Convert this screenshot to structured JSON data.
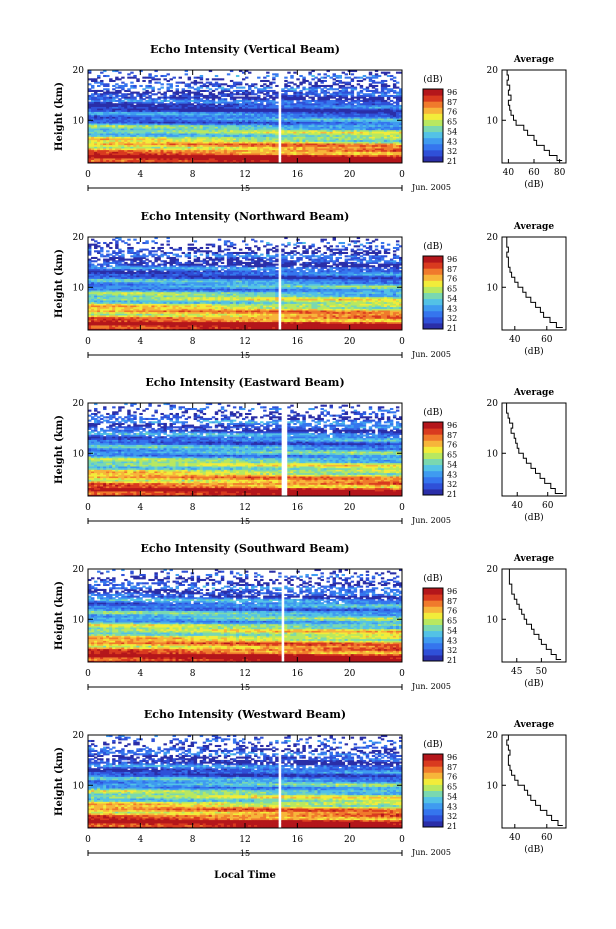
{
  "figure": {
    "xlabel": "Local Time",
    "date_label": "Jun. 2005",
    "day_label": "15",
    "cbar_unit": "(dB)",
    "colors": {
      "scale": [
        "#2a2ea8",
        "#2f50d8",
        "#3575ee",
        "#3f9bf0",
        "#53c2e6",
        "#7ad8b0",
        "#b8e860",
        "#f2ec3a",
        "#f7b53a",
        "#f07a2c",
        "#d93a1f",
        "#b4161b"
      ],
      "gap": "#ffffff"
    }
  },
  "chart_data": [
    {
      "type": "heatmap",
      "title": "Echo Intensity (Vertical Beam)",
      "ylabel": "Height (km)",
      "xlabel": "Local Time",
      "x_ticks": [
        "0",
        "4",
        "8",
        "12",
        "16",
        "20",
        "0"
      ],
      "xlim": [
        0,
        24
      ],
      "y_ticks": [
        "10",
        "20"
      ],
      "ylim": [
        1.5,
        20
      ],
      "data_gap_hour": 14.7,
      "colorbar": {
        "label": "(dB)",
        "ticks": [
          "96",
          "87",
          "76",
          "65",
          "54",
          "43",
          "32",
          "21"
        ],
        "range": [
          21,
          96
        ]
      },
      "average_profile": {
        "title": "Average",
        "xlabel": "(dB)",
        "x_ticks": [
          "40",
          "60",
          "80"
        ],
        "xlim": [
          35,
          85
        ],
        "y_ticks": [
          "10",
          "20"
        ],
        "heights": [
          2,
          3,
          4,
          5,
          6,
          7,
          8,
          9,
          10,
          11,
          12,
          13,
          14,
          15,
          16,
          17,
          18,
          19,
          20
        ],
        "values": [
          82,
          78,
          72,
          68,
          62,
          60,
          55,
          52,
          46,
          44,
          42,
          41,
          40,
          42,
          40,
          41,
          39,
          40,
          39
        ]
      }
    },
    {
      "type": "heatmap",
      "title": "Echo Intensity (Northward Beam)",
      "ylabel": "Height (km)",
      "xlabel": "Local Time",
      "x_ticks": [
        "0",
        "4",
        "8",
        "12",
        "16",
        "20",
        "0"
      ],
      "xlim": [
        0,
        24
      ],
      "y_ticks": [
        "10",
        "20"
      ],
      "ylim": [
        1.5,
        20
      ],
      "data_gap_hour": 14.7,
      "colorbar": {
        "label": "(dB)",
        "ticks": [
          "96",
          "87",
          "76",
          "65",
          "54",
          "43",
          "32",
          "21"
        ],
        "range": [
          21,
          96
        ]
      },
      "average_profile": {
        "title": "Average",
        "xlabel": "(dB)",
        "x_ticks": [
          "40",
          "60"
        ],
        "xlim": [
          32,
          72
        ],
        "y_ticks": [
          "10",
          "20"
        ],
        "heights": [
          2,
          3,
          4,
          5,
          6,
          7,
          8,
          9,
          10,
          11,
          12,
          13,
          14,
          15,
          16,
          17,
          18,
          19,
          20
        ],
        "values": [
          70,
          66,
          62,
          58,
          56,
          53,
          50,
          47,
          45,
          42,
          40,
          38,
          37,
          36,
          36,
          35,
          36,
          35,
          35
        ]
      }
    },
    {
      "type": "heatmap",
      "title": "Echo Intensity (Eastward Beam)",
      "ylabel": "Height (km)",
      "xlabel": "Local Time",
      "x_ticks": [
        "0",
        "4",
        "8",
        "12",
        "16",
        "20",
        "0"
      ],
      "xlim": [
        0,
        24
      ],
      "y_ticks": [
        "10",
        "20"
      ],
      "ylim": [
        1.5,
        20
      ],
      "data_gap_hour": 15.0,
      "colorbar": {
        "label": "(dB)",
        "ticks": [
          "96",
          "87",
          "76",
          "65",
          "54",
          "43",
          "32",
          "21"
        ],
        "range": [
          21,
          96
        ]
      },
      "average_profile": {
        "title": "Average",
        "xlabel": "(dB)",
        "x_ticks": [
          "40",
          "60"
        ],
        "xlim": [
          30,
          72
        ],
        "y_ticks": [
          "10",
          "20"
        ],
        "heights": [
          2,
          3,
          4,
          5,
          6,
          7,
          8,
          9,
          10,
          11,
          12,
          13,
          14,
          15,
          16,
          17,
          18,
          19,
          20
        ],
        "values": [
          70,
          65,
          62,
          58,
          55,
          52,
          49,
          46,
          44,
          41,
          40,
          39,
          38,
          36,
          37,
          35,
          34,
          33,
          33
        ]
      }
    },
    {
      "type": "heatmap",
      "title": "Echo Intensity (Southward Beam)",
      "ylabel": "Height (km)",
      "xlabel": "Local Time",
      "x_ticks": [
        "0",
        "4",
        "8",
        "12",
        "16",
        "20",
        "0"
      ],
      "xlim": [
        0,
        24
      ],
      "y_ticks": [
        "10",
        "20"
      ],
      "ylim": [
        1.5,
        20
      ],
      "data_gap_hour": 14.9,
      "colorbar": {
        "label": "(dB)",
        "ticks": [
          "96",
          "87",
          "76",
          "65",
          "54",
          "43",
          "32",
          "21"
        ],
        "range": [
          21,
          96
        ]
      },
      "average_profile": {
        "title": "Average",
        "xlabel": "(dB)",
        "x_ticks": [
          "45",
          "50"
        ],
        "xlim": [
          42,
          55
        ],
        "y_ticks": [
          "10",
          "20"
        ],
        "heights": [
          2,
          3,
          4,
          5,
          6,
          7,
          8,
          9,
          10,
          11,
          12,
          13,
          14,
          15,
          16,
          17,
          18,
          19,
          20
        ],
        "values": [
          54,
          53,
          52,
          51,
          50,
          49.5,
          48.5,
          48,
          47,
          46.5,
          46,
          45.5,
          45,
          44.5,
          44,
          44,
          43.5,
          43.5,
          43.5
        ]
      }
    },
    {
      "type": "heatmap",
      "title": "Echo Intensity (Westward Beam)",
      "ylabel": "Height (km)",
      "xlabel": "Local Time",
      "x_ticks": [
        "0",
        "4",
        "8",
        "12",
        "16",
        "20",
        "0"
      ],
      "xlim": [
        0,
        24
      ],
      "y_ticks": [
        "10",
        "20"
      ],
      "ylim": [
        1.5,
        20
      ],
      "data_gap_hour": 14.7,
      "colorbar": {
        "label": "(dB)",
        "ticks": [
          "96",
          "87",
          "76",
          "65",
          "54",
          "43",
          "32",
          "21"
        ],
        "range": [
          21,
          96
        ]
      },
      "average_profile": {
        "title": "Average",
        "xlabel": "(dB)",
        "x_ticks": [
          "40",
          "60"
        ],
        "xlim": [
          32,
          72
        ],
        "y_ticks": [
          "10",
          "20"
        ],
        "heights": [
          2,
          3,
          4,
          5,
          6,
          7,
          8,
          9,
          10,
          11,
          12,
          13,
          14,
          15,
          16,
          17,
          18,
          19,
          20
        ],
        "values": [
          70,
          67,
          63,
          60,
          56,
          53,
          50,
          48,
          46,
          42,
          40,
          38,
          37,
          36,
          36,
          37,
          36,
          35,
          36
        ]
      }
    }
  ]
}
